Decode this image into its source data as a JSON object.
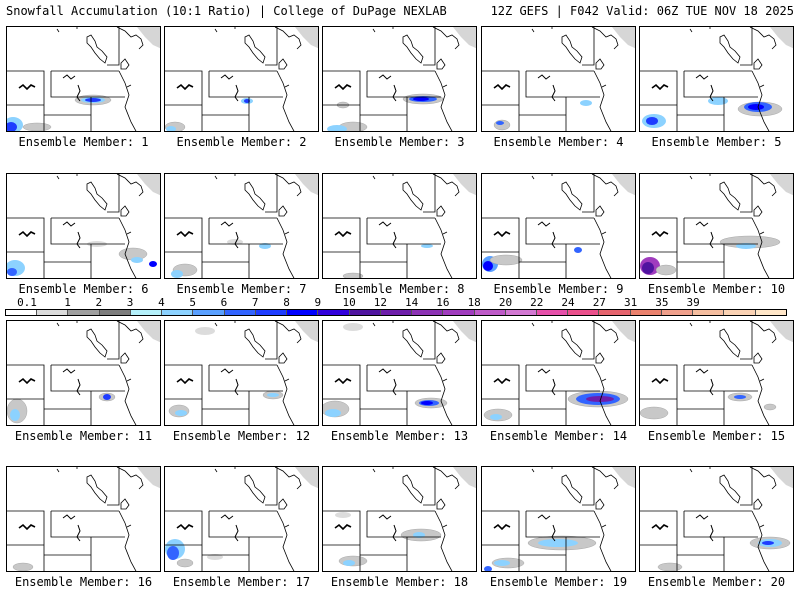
{
  "header": {
    "left": "Snowfall Accumulation (10:1 Ratio) | College of DuPage NEXLAB",
    "right": "12Z GEFS | F042 Valid: 06Z TUE NOV 18 2025"
  },
  "members": [
    {
      "label": "Ensemble Member: 1"
    },
    {
      "label": "Ensemble Member: 2"
    },
    {
      "label": "Ensemble Member: 3"
    },
    {
      "label": "Ensemble Member: 4"
    },
    {
      "label": "Ensemble Member: 5"
    },
    {
      "label": "Ensemble Member: 6"
    },
    {
      "label": "Ensemble Member: 7"
    },
    {
      "label": "Ensemble Member: 8"
    },
    {
      "label": "Ensemble Member: 9"
    },
    {
      "label": "Ensemble Member: 10"
    },
    {
      "label": "Ensemble Member: 11"
    },
    {
      "label": "Ensemble Member: 12"
    },
    {
      "label": "Ensemble Member: 13"
    },
    {
      "label": "Ensemble Member: 14"
    },
    {
      "label": "Ensemble Member: 15"
    },
    {
      "label": "Ensemble Member: 16"
    },
    {
      "label": "Ensemble Member: 17"
    },
    {
      "label": "Ensemble Member: 18"
    },
    {
      "label": "Ensemble Member: 19"
    },
    {
      "label": "Ensemble Member: 20"
    }
  ],
  "colorbar": {
    "ticks": [
      "0.1",
      "1",
      "2",
      "3",
      "4",
      "5",
      "6",
      "7",
      "8",
      "9",
      "10",
      "12",
      "14",
      "16",
      "18",
      "20",
      "22",
      "24",
      "27",
      "31",
      "35",
      "39"
    ],
    "colors": [
      "#ffffff",
      "#dcdcdc",
      "#a0a0a0",
      "#7d7d7d",
      "#b4f0fa",
      "#8cd2ff",
      "#5aa0ff",
      "#3264ff",
      "#1e3cff",
      "#0000ff",
      "#3200dc",
      "#5014a0",
      "#6e1eaa",
      "#8c32b4",
      "#a03cbe",
      "#be5ac8",
      "#d278d2",
      "#e650aa",
      "#eb508c",
      "#e6646e",
      "#eb826e",
      "#f0a08c",
      "#f5bea0",
      "#fad2b4",
      "#ffe6c8"
    ]
  }
}
